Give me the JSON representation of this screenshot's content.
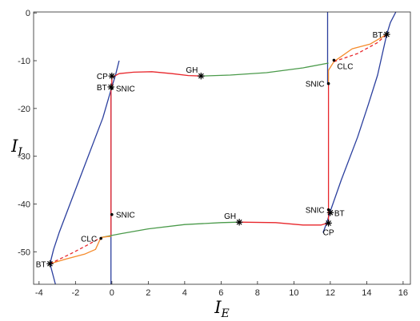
{
  "chart_data": {
    "type": "line",
    "xlabel": "I",
    "xlabel_sub": "E",
    "ylabel": "I",
    "ylabel_sub": "I",
    "xlim": [
      -4.3,
      16.4
    ],
    "ylim": [
      -56.8,
      0.2
    ],
    "xticks": [
      -4,
      -2,
      0,
      2,
      4,
      6,
      8,
      10,
      12,
      14,
      16
    ],
    "yticks": [
      0,
      -10,
      -20,
      -30,
      -40,
      -50
    ],
    "grid": false,
    "colors": {
      "blue": "#2b3f9e",
      "red": "#e8262b",
      "green": "#4a9a4a",
      "orange": "#f58a2a",
      "red_dashed": "#e8262b",
      "point": "#000000"
    },
    "series": [
      {
        "color": "blue",
        "style": "solid",
        "points": [
          [
            -3.1,
            -56.8
          ],
          [
            -3.4,
            -52.5
          ],
          [
            -3.2,
            -49.5
          ],
          [
            -2.9,
            -46
          ],
          [
            -2.3,
            -40
          ],
          [
            -1.5,
            -32
          ],
          [
            -1,
            -27
          ],
          [
            -0.5,
            -22
          ],
          [
            0,
            -15.5
          ],
          [
            0.2,
            -13
          ],
          [
            0.4,
            -10
          ]
        ]
      },
      {
        "color": "blue",
        "style": "solid",
        "points": [
          [
            11.6,
            -46
          ],
          [
            11.8,
            -44
          ],
          [
            12,
            -41.5
          ],
          [
            12.6,
            -35
          ],
          [
            13.5,
            -26
          ],
          [
            14.1,
            -19
          ],
          [
            14.6,
            -13
          ],
          [
            15.1,
            -4.5
          ],
          [
            15.3,
            -2
          ],
          [
            15.6,
            0.2
          ]
        ]
      },
      {
        "color": "blue",
        "style": "solid",
        "points": [
          [
            -0.05,
            -56.8
          ],
          [
            -0.05,
            -15.5
          ]
        ]
      },
      {
        "color": "blue",
        "style": "solid",
        "points": [
          [
            11.85,
            0.2
          ],
          [
            11.85,
            -15
          ]
        ]
      },
      {
        "color": "red",
        "style": "solid",
        "points": [
          [
            -0.05,
            -15.5
          ],
          [
            -0.05,
            -42
          ],
          [
            -0.05,
            -46.8
          ]
        ]
      },
      {
        "color": "red",
        "style": "solid",
        "points": [
          [
            11.9,
            -15
          ],
          [
            11.9,
            -41.5
          ]
        ]
      },
      {
        "color": "red",
        "style": "solid",
        "points": [
          [
            0,
            -15.5
          ],
          [
            0,
            -13.5
          ],
          [
            0.4,
            -12.7
          ],
          [
            1.2,
            -12.4
          ],
          [
            2.2,
            -12.3
          ],
          [
            3.3,
            -12.7
          ],
          [
            4.2,
            -13.1
          ],
          [
            4.9,
            -13.2
          ]
        ]
      },
      {
        "color": "green",
        "style": "solid",
        "points": [
          [
            4.9,
            -13.2
          ],
          [
            6.5,
            -13
          ],
          [
            8.5,
            -12.5
          ],
          [
            10.5,
            -11.5
          ],
          [
            11.9,
            -10.5
          ]
        ]
      },
      {
        "color": "orange",
        "style": "solid",
        "points": [
          [
            11.9,
            -15
          ],
          [
            11.9,
            -12
          ],
          [
            12.2,
            -10.2
          ],
          [
            13.2,
            -7.5
          ],
          [
            14.2,
            -6.5
          ],
          [
            15.1,
            -4.5
          ]
        ]
      },
      {
        "color": "red_dashed",
        "style": "dashed",
        "points": [
          [
            12.2,
            -10.2
          ],
          [
            13.5,
            -8.5
          ],
          [
            14.6,
            -6.2
          ],
          [
            15.1,
            -4.5
          ]
        ]
      },
      {
        "color": "green",
        "style": "solid",
        "points": [
          [
            -0.6,
            -47
          ],
          [
            0.5,
            -46.2
          ],
          [
            2,
            -45.2
          ],
          [
            4,
            -44.3
          ],
          [
            6,
            -43.9
          ],
          [
            7,
            -43.8
          ]
        ]
      },
      {
        "color": "red",
        "style": "solid",
        "points": [
          [
            7,
            -43.8
          ],
          [
            9,
            -43.9
          ],
          [
            10.5,
            -44.4
          ],
          [
            11.5,
            -44.4
          ],
          [
            11.85,
            -44
          ]
        ]
      },
      {
        "color": "red",
        "style": "solid",
        "points": [
          [
            11.9,
            -41.5
          ],
          [
            11.9,
            -44
          ]
        ]
      },
      {
        "color": "orange",
        "style": "solid",
        "points": [
          [
            -3.4,
            -52.5
          ],
          [
            -2.5,
            -51.5
          ],
          [
            -1.5,
            -50.5
          ],
          [
            -0.9,
            -49.5
          ],
          [
            -0.6,
            -47
          ],
          [
            -0.2,
            -46.8
          ],
          [
            -0.05,
            -46.8
          ]
        ]
      },
      {
        "color": "red_dashed",
        "style": "dashed",
        "points": [
          [
            -3.4,
            -52.5
          ],
          [
            -2.2,
            -50.3
          ],
          [
            -1.3,
            -48.5
          ],
          [
            -0.6,
            -47
          ]
        ]
      }
    ],
    "points": [
      {
        "x": 0,
        "y": -13.2,
        "kind": "star",
        "label": "CP",
        "pos": "left"
      },
      {
        "x": -0.05,
        "y": -15.5,
        "kind": "star",
        "label": "BT",
        "pos": "left"
      },
      {
        "x": 0,
        "y": -15.8,
        "kind": "dot",
        "label": "SNIC",
        "pos": "right"
      },
      {
        "x": 4.9,
        "y": -13.2,
        "kind": "star",
        "label": "GH",
        "pos": "top-left"
      },
      {
        "x": 12.2,
        "y": -9.9,
        "kind": "dot",
        "label": "CLC",
        "pos": "bottom-right"
      },
      {
        "x": 15.1,
        "y": -4.5,
        "kind": "star",
        "label": "BT",
        "pos": "left"
      },
      {
        "x": 11.9,
        "y": -14.8,
        "kind": "dot",
        "label": "SNIC",
        "pos": "left"
      },
      {
        "x": 0,
        "y": -42.2,
        "kind": "dot",
        "label": "SNIC",
        "pos": "right"
      },
      {
        "x": 7,
        "y": -43.8,
        "kind": "star",
        "label": "GH",
        "pos": "top-left"
      },
      {
        "x": 11.9,
        "y": -41.2,
        "kind": "dot",
        "label": "SNIC",
        "pos": "left"
      },
      {
        "x": 12,
        "y": -41.8,
        "kind": "star",
        "label": "BT",
        "pos": "right"
      },
      {
        "x": 11.9,
        "y": -44,
        "kind": "star",
        "label": "CP",
        "pos": "bottom"
      },
      {
        "x": -0.6,
        "y": -47.2,
        "kind": "dot",
        "label": "CLC",
        "pos": "left"
      },
      {
        "x": -3.4,
        "y": -52.5,
        "kind": "star",
        "label": "BT",
        "pos": "left"
      }
    ]
  }
}
